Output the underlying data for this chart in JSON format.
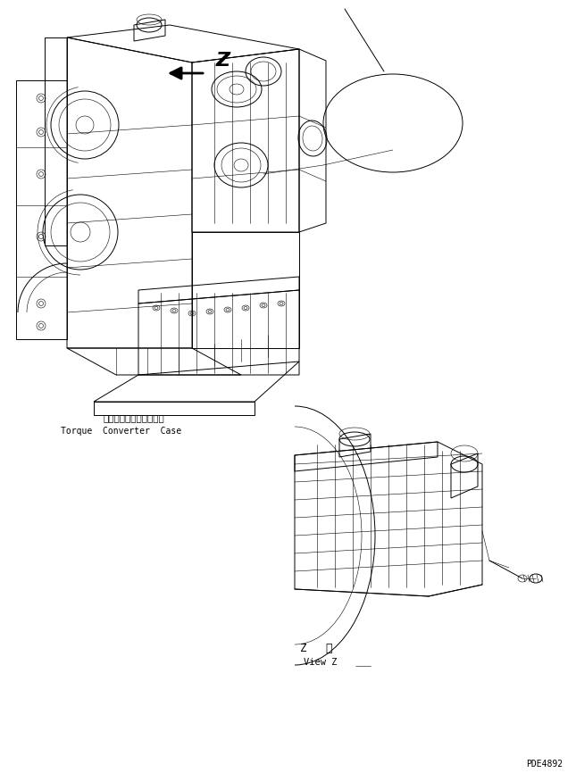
{
  "background_color": "#ffffff",
  "line_color": "#000000",
  "fig_width": 6.45,
  "fig_height": 8.66,
  "dpi": 100,
  "label_japanese_1": "トルクコンバータケース",
  "label_english_1": "Torque  Converter  Case",
  "label_z_view_en": "View Z",
  "part_code": "PDE4892",
  "lw_thin": 0.4,
  "lw_med": 0.7,
  "lw_thick": 1.0
}
